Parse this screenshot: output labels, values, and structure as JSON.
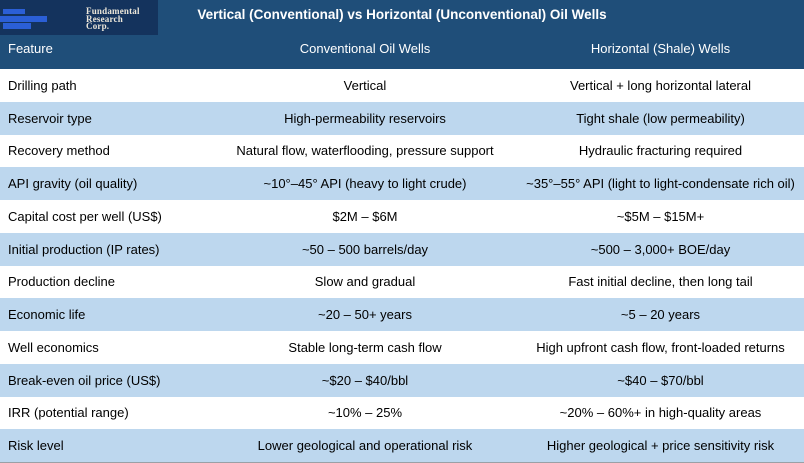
{
  "brand": {
    "logo_lines": [
      "Fundamental",
      "Research",
      "Corp."
    ]
  },
  "header": {
    "title": "Vertical (Conventional) vs Horizontal (Unconventional) Oil Wells"
  },
  "table": {
    "columns": [
      "Feature",
      "Conventional Oil Wells",
      "Horizontal (Shale) Wells"
    ],
    "rows": [
      {
        "feature": "Drilling path",
        "conventional": "Vertical",
        "horizontal": "Vertical + long horizontal lateral"
      },
      {
        "feature": "Reservoir type",
        "conventional": "High-permeability reservoirs",
        "horizontal": "Tight shale (low permeability)"
      },
      {
        "feature": "Recovery method",
        "conventional": "Natural flow, waterflooding, pressure support",
        "horizontal": "Hydraulic fracturing required"
      },
      {
        "feature": "API gravity (oil quality)",
        "conventional": "~10°–45° API (heavy to light crude)",
        "horizontal": "~35°–55° API (light to light-condensate rich oil)"
      },
      {
        "feature": "Capital cost per well (US$)",
        "conventional": "$2M – $6M",
        "horizontal": "~$5M – $15M+"
      },
      {
        "feature": "Initial production (IP rates)",
        "conventional": "~50 – 500 barrels/day",
        "horizontal": "~500 – 3,000+ BOE/day"
      },
      {
        "feature": "Production decline",
        "conventional": "Slow and gradual",
        "horizontal": "Fast initial decline, then long tail"
      },
      {
        "feature": "Economic life",
        "conventional": "~20 – 50+ years",
        "horizontal": "~5 – 20 years"
      },
      {
        "feature": "Well economics",
        "conventional": "Stable long-term cash flow",
        "horizontal": "High upfront cash flow, front-loaded returns"
      },
      {
        "feature": "Break-even oil price (US$)",
        "conventional": "~$20 – $40/bbl",
        "horizontal": "~$40 – $70/bbl"
      },
      {
        "feature": "IRR (potential range)",
        "conventional": "~10% – 25%",
        "horizontal": "~20% – 60%+ in high-quality areas"
      },
      {
        "feature": "Risk level",
        "conventional": "Lower geological and operational risk",
        "horizontal": "Higher geological + price sensitivity risk"
      }
    ]
  },
  "colors": {
    "header_bg": "#1F4E79",
    "row_alt_bg": "#BDD7EE",
    "logo_bg": "#14335D",
    "logo_bar": "#2B5FD6",
    "header_text": "#FFFFFF",
    "body_text": "#000000"
  }
}
